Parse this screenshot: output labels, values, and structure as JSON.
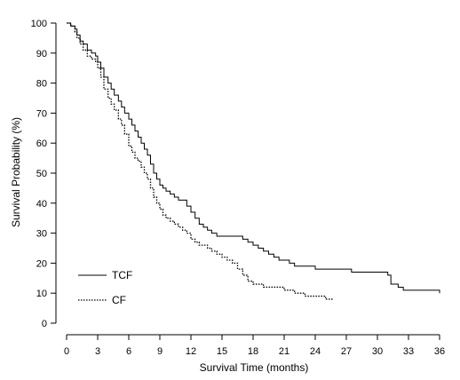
{
  "chart_data": {
    "type": "line",
    "title": "",
    "xlabel": "Survival Time (months)",
    "ylabel": "Survival Probability (%)",
    "xlim": [
      0,
      36
    ],
    "ylim": [
      0,
      100
    ],
    "xticks": [
      0,
      3,
      6,
      9,
      12,
      15,
      18,
      21,
      24,
      27,
      30,
      33,
      36
    ],
    "yticks": [
      0,
      10,
      20,
      30,
      40,
      50,
      60,
      70,
      80,
      90,
      100
    ],
    "grid": false,
    "legend_position": "bottom-left",
    "step": true,
    "series": [
      {
        "name": "TCF",
        "style": "solid",
        "color": "#000000",
        "x": [
          0,
          0.4,
          0.8,
          1.0,
          1.3,
          1.6,
          2.0,
          2.4,
          2.8,
          3.0,
          3.3,
          3.6,
          4.0,
          4.3,
          4.6,
          5.0,
          5.3,
          5.6,
          6.0,
          6.3,
          6.6,
          6.9,
          7.2,
          7.5,
          7.8,
          8.1,
          8.4,
          8.7,
          9.0,
          9.3,
          9.6,
          10.0,
          10.4,
          10.8,
          11.2,
          11.6,
          12.0,
          12.4,
          12.8,
          13.2,
          13.6,
          14.0,
          14.5,
          15.0,
          15.5,
          16.0,
          16.5,
          17.0,
          17.5,
          18.0,
          18.5,
          19.0,
          19.5,
          20.0,
          20.5,
          21.0,
          21.5,
          22.0,
          24.0,
          26.5,
          27.5,
          31.0,
          31.3,
          32.0,
          32.5,
          36.0
        ],
        "y": [
          100,
          99,
          98,
          96,
          94,
          93,
          91,
          90,
          89,
          87,
          85,
          82,
          80,
          78,
          76,
          74,
          72,
          70,
          68,
          66,
          64,
          62,
          60,
          58,
          56,
          53,
          50,
          48,
          46,
          45,
          44,
          43,
          42,
          41,
          41,
          39,
          37,
          35,
          33,
          32,
          31,
          30,
          29,
          29,
          29,
          29,
          29,
          28,
          27,
          26,
          25,
          24,
          23,
          22,
          21,
          21,
          20,
          19,
          18,
          18,
          17,
          16,
          13,
          12,
          11,
          10
        ]
      },
      {
        "name": "CF",
        "style": "dotted",
        "color": "#000000",
        "x": [
          0,
          0.4,
          0.8,
          1.0,
          1.3,
          1.6,
          2.0,
          2.4,
          2.8,
          3.0,
          3.3,
          3.6,
          4.0,
          4.3,
          4.6,
          5.0,
          5.3,
          5.6,
          6.0,
          6.3,
          6.6,
          6.9,
          7.2,
          7.5,
          7.8,
          8.1,
          8.4,
          8.7,
          9.0,
          9.3,
          9.6,
          10.0,
          10.4,
          10.8,
          11.2,
          11.6,
          12.0,
          12.4,
          12.8,
          13.2,
          13.6,
          14.0,
          14.5,
          15.0,
          15.5,
          16.0,
          16.5,
          17.0,
          17.5,
          18.0,
          18.5,
          19.0,
          20.0,
          21.0,
          22.0,
          23.0,
          24.0,
          25.0,
          25.7
        ],
        "y": [
          100,
          99,
          97,
          95,
          93,
          91,
          89,
          88,
          87,
          85,
          82,
          78,
          75,
          73,
          71,
          68,
          66,
          63,
          59,
          57,
          55,
          54,
          52,
          50,
          48,
          45,
          42,
          40,
          38,
          36,
          35,
          34,
          33,
          32,
          31,
          30,
          28,
          27,
          26,
          26,
          25,
          24,
          23,
          22,
          21,
          20,
          18,
          16,
          14,
          13,
          13,
          12,
          12,
          11,
          10,
          9,
          9,
          8,
          8
        ]
      }
    ]
  }
}
